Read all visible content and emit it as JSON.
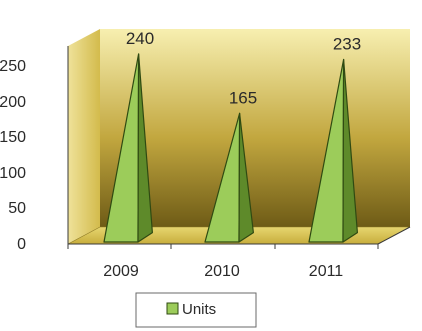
{
  "chart_data": {
    "type": "bar",
    "bar_shape": "3d-pyramid",
    "categories": [
      "2009",
      "2010",
      "2011"
    ],
    "series": [
      {
        "name": "Units",
        "values": [
          240,
          165,
          233
        ],
        "color": "#9ccc5a"
      }
    ],
    "data_labels": [
      "240",
      "165",
      "233"
    ],
    "ylim": [
      0,
      250
    ],
    "y_ticks": [
      "0",
      "50",
      "100",
      "150",
      "200",
      "250"
    ],
    "grid": false,
    "legend": {
      "position": "bottom",
      "entries": [
        "Units"
      ]
    },
    "colors": {
      "pyramid_front": "#9ccc5a",
      "pyramid_side": "#5e8a2a",
      "pyramid_edge": "#2f4a12",
      "back_wall_light": "#f7efb0",
      "back_wall_dark": "#6e5b16",
      "floor": "#d8c350"
    }
  }
}
